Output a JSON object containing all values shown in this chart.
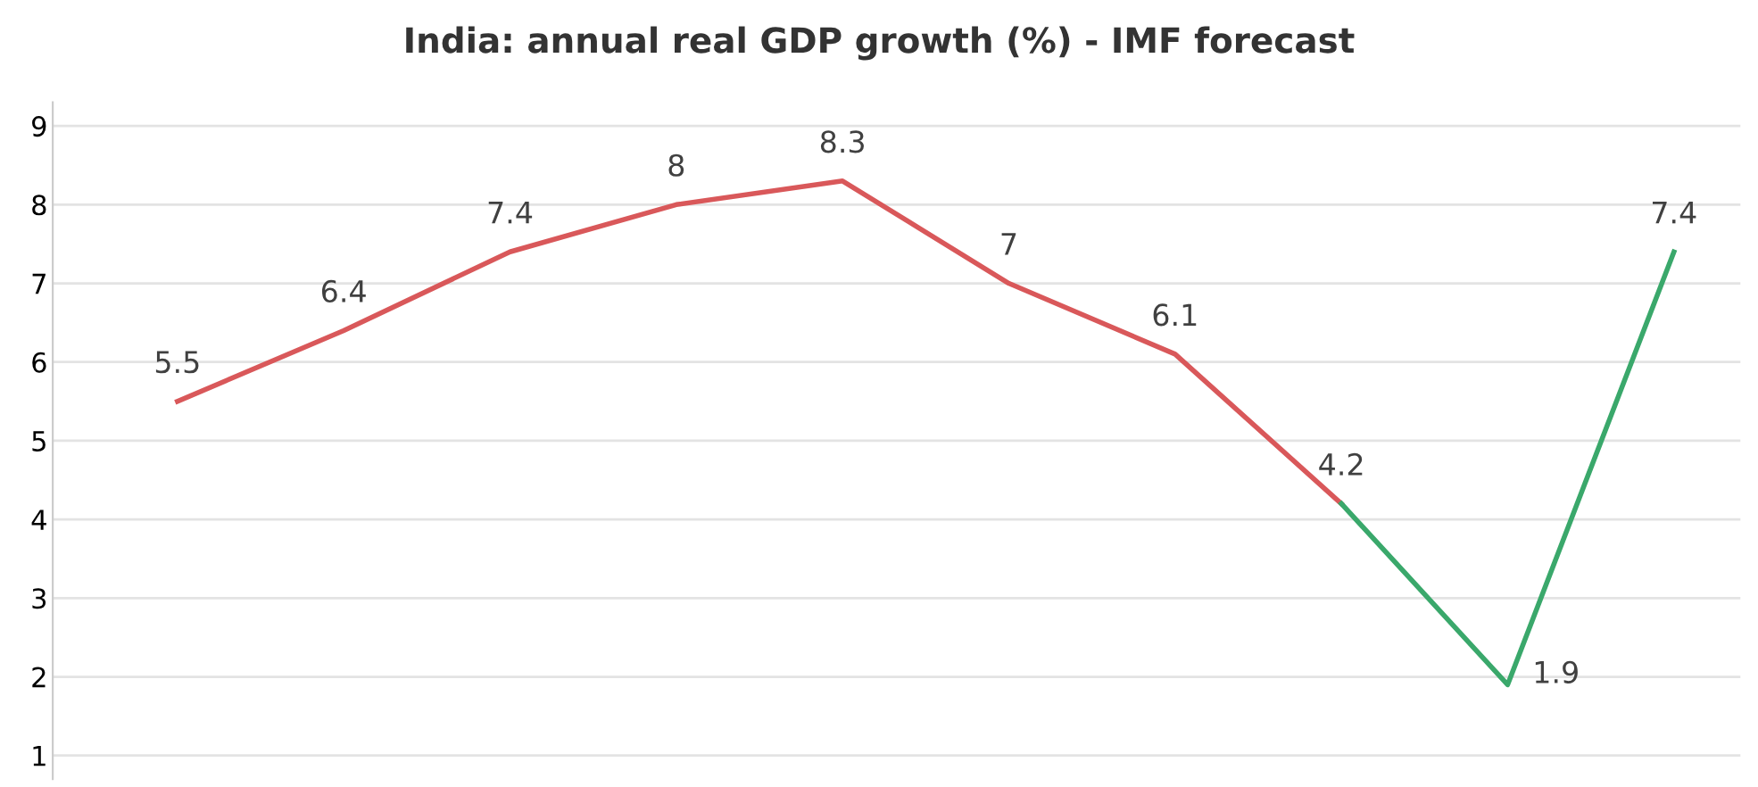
{
  "chart_data": {
    "type": "line",
    "title": "India: annual real GDP growth (%) - IMF forecast",
    "categories": [
      null,
      null,
      null,
      null,
      null,
      null,
      null,
      null,
      null,
      null
    ],
    "series": [
      {
        "color": "#d9585a",
        "values": [
          5.5,
          6.4,
          7.4,
          8,
          8.3,
          7,
          6.1,
          4.2,
          null,
          null
        ],
        "value_labels": [
          "5.5",
          "6.4",
          "7.4",
          "8",
          "8.3",
          "7",
          "6.1",
          "4.2",
          null,
          null
        ]
      },
      {
        "color": "#3aa86b",
        "values": [
          null,
          null,
          null,
          null,
          null,
          null,
          null,
          4.2,
          1.9,
          7.4
        ],
        "value_labels": [
          null,
          null,
          null,
          null,
          null,
          null,
          null,
          null,
          "1.9",
          "7.4"
        ]
      }
    ],
    "ylim": [
      0.7,
      9.3
    ],
    "yticks": [
      1,
      2,
      3,
      4,
      5,
      6,
      7,
      8,
      9
    ],
    "grid": "y",
    "tick_labels": "y",
    "marker": "none",
    "line_style": "solid"
  }
}
